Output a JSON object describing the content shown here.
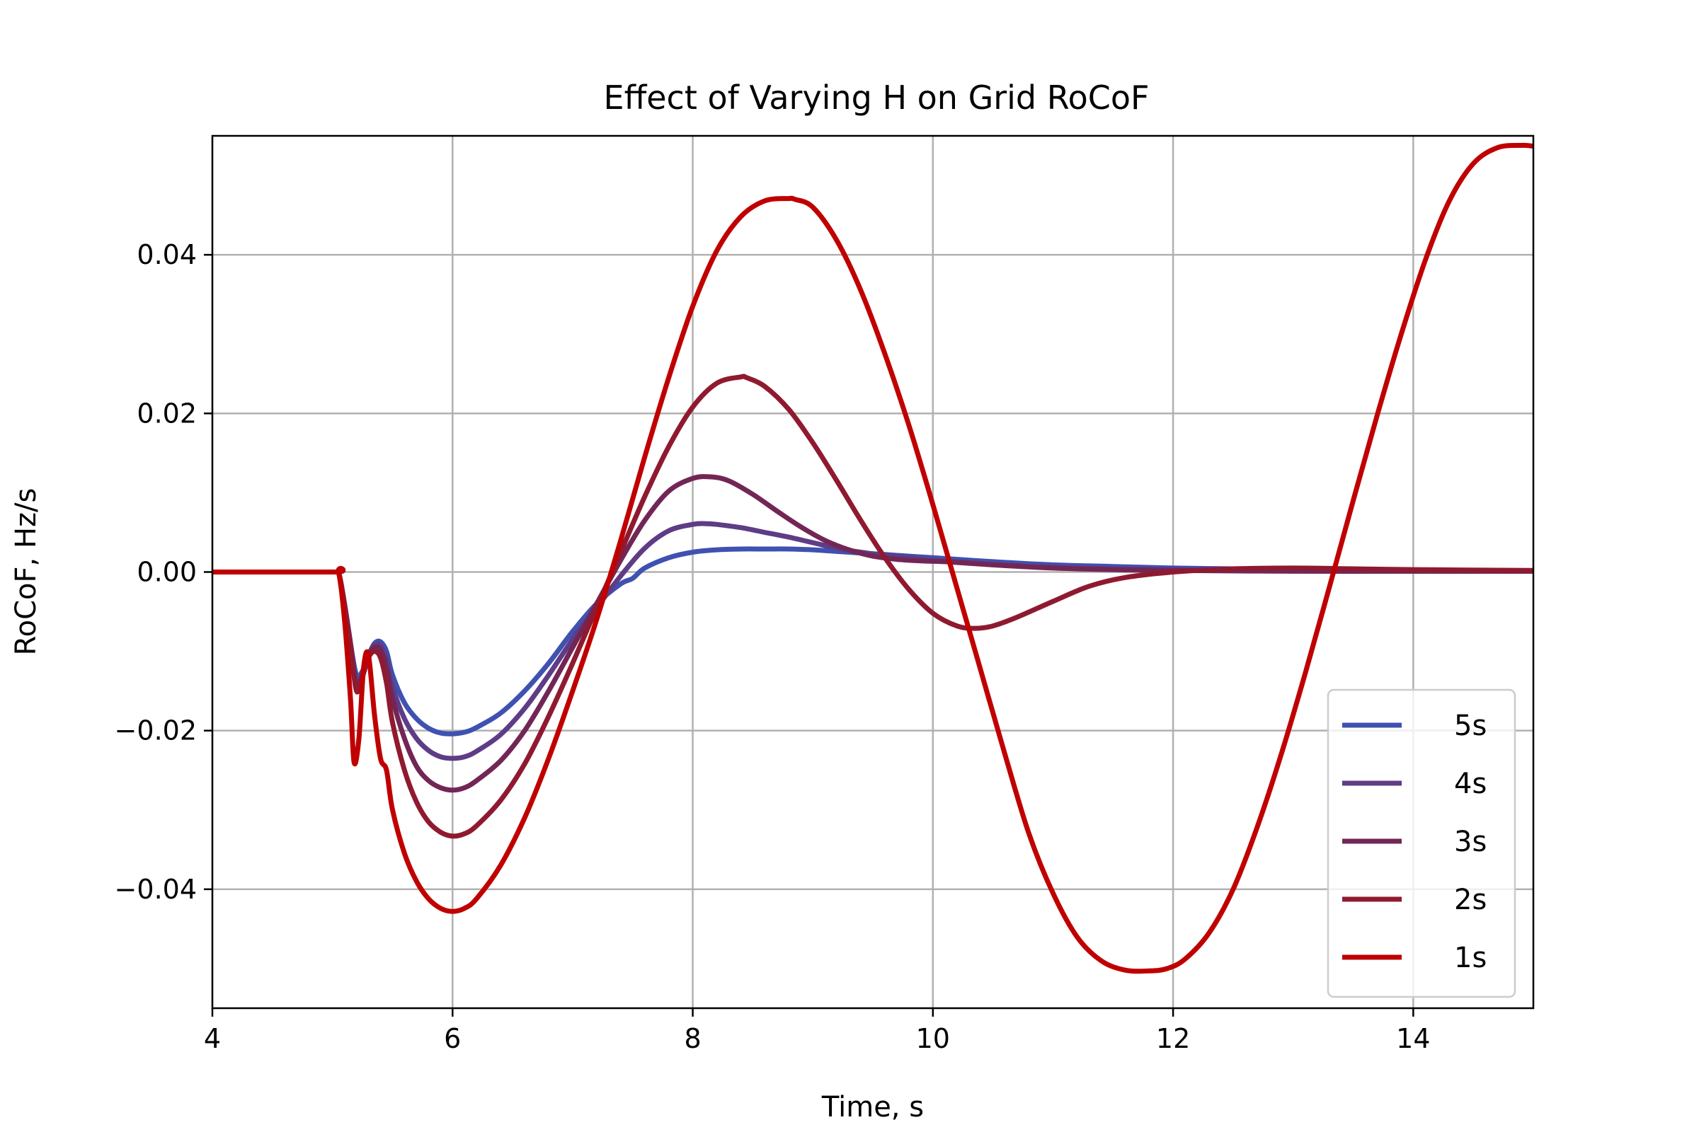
{
  "chart_data": {
    "type": "line",
    "title": "Effect of Varying H on Grid RoCoF",
    "xlabel": "Time, s",
    "ylabel": "RoCoF, Hz/s",
    "xlim": [
      4,
      15
    ],
    "ylim": [
      -0.055,
      0.055
    ],
    "xticks": [
      4,
      6,
      8,
      10,
      12,
      14
    ],
    "xtick_labels": [
      "4",
      "6",
      "8",
      "10",
      "12",
      "14"
    ],
    "yticks": [
      -0.04,
      -0.02,
      0.0,
      0.02,
      0.04
    ],
    "ytick_labels": [
      "−0.04",
      "−0.02",
      "0.00",
      "0.02",
      "0.04"
    ],
    "grid": true,
    "legend_position": "lower-right",
    "series": [
      {
        "name": "5s",
        "color": "#3f51b1",
        "x": [
          4.0,
          5.0,
          5.05,
          5.1,
          5.15,
          5.2,
          5.25,
          5.3,
          5.35,
          5.4,
          5.45,
          5.5,
          5.6,
          5.7,
          5.8,
          5.9,
          6.0,
          6.1,
          6.2,
          6.4,
          6.6,
          6.8,
          7.0,
          7.2,
          7.4,
          7.5,
          7.6,
          7.8,
          8.0,
          8.2,
          8.4,
          8.6,
          8.8,
          9.0,
          9.2,
          9.4,
          9.6,
          9.8,
          10.0,
          10.5,
          11.0,
          11.5,
          12.0,
          12.5,
          13.0,
          14.0,
          15.0
        ],
        "y": [
          0.0,
          0.0,
          0.0,
          -0.004,
          -0.009,
          -0.013,
          -0.0125,
          -0.0105,
          -0.009,
          -0.0088,
          -0.01,
          -0.013,
          -0.0165,
          -0.0185,
          -0.0197,
          -0.0203,
          -0.0204,
          -0.0202,
          -0.0196,
          -0.0178,
          -0.015,
          -0.0115,
          -0.0075,
          -0.004,
          -0.0015,
          -0.0008,
          0.0005,
          0.0018,
          0.0025,
          0.0028,
          0.0029,
          0.0029,
          0.0029,
          0.0028,
          0.0026,
          0.0024,
          0.0022,
          0.002,
          0.0018,
          0.0013,
          0.0009,
          0.0007,
          0.0005,
          0.0004,
          0.0003,
          0.0002,
          0.0001
        ]
      },
      {
        "name": "4s",
        "color": "#5e3c86",
        "x": [
          4.0,
          5.0,
          5.05,
          5.1,
          5.15,
          5.2,
          5.25,
          5.3,
          5.35,
          5.4,
          5.45,
          5.5,
          5.6,
          5.7,
          5.8,
          5.9,
          6.0,
          6.1,
          6.2,
          6.4,
          6.6,
          6.8,
          7.0,
          7.2,
          7.4,
          7.6,
          7.8,
          8.0,
          8.1,
          8.2,
          8.4,
          8.6,
          8.8,
          9.0,
          9.2,
          9.4,
          9.6,
          9.8,
          10.0,
          10.5,
          11.0,
          11.5,
          12.0,
          13.0,
          14.0,
          15.0
        ],
        "y": [
          0.0,
          0.0,
          0.0,
          -0.004,
          -0.009,
          -0.014,
          -0.0128,
          -0.0105,
          -0.0092,
          -0.0093,
          -0.011,
          -0.0145,
          -0.0185,
          -0.021,
          -0.0225,
          -0.0233,
          -0.0235,
          -0.0233,
          -0.0226,
          -0.0205,
          -0.0172,
          -0.013,
          -0.0085,
          -0.0045,
          -0.0005,
          0.003,
          0.0052,
          0.006,
          0.0061,
          0.006,
          0.0056,
          0.005,
          0.0044,
          0.0037,
          0.003,
          0.0025,
          0.0021,
          0.0018,
          0.0015,
          0.001,
          0.0006,
          0.0004,
          0.0003,
          0.0002,
          0.0001,
          0.0001
        ]
      },
      {
        "name": "3s",
        "color": "#722656",
        "x": [
          4.0,
          5.0,
          5.05,
          5.1,
          5.15,
          5.2,
          5.25,
          5.3,
          5.35,
          5.4,
          5.45,
          5.5,
          5.6,
          5.7,
          5.8,
          5.9,
          6.0,
          6.1,
          6.2,
          6.4,
          6.6,
          6.8,
          7.0,
          7.2,
          7.4,
          7.6,
          7.8,
          8.0,
          8.15,
          8.3,
          8.5,
          8.7,
          8.9,
          9.1,
          9.3,
          9.5,
          9.7,
          9.9,
          10.1,
          10.5,
          11.0,
          11.5,
          12.0,
          13.0,
          14.0,
          15.0
        ],
        "y": [
          0.0,
          0.0,
          0.0,
          -0.004,
          -0.009,
          -0.0145,
          -0.013,
          -0.0106,
          -0.0095,
          -0.0098,
          -0.012,
          -0.016,
          -0.021,
          -0.0245,
          -0.0263,
          -0.0272,
          -0.0275,
          -0.0272,
          -0.0263,
          -0.0238,
          -0.02,
          -0.015,
          -0.0095,
          -0.004,
          0.0015,
          0.0065,
          0.0102,
          0.0118,
          0.012,
          0.0115,
          0.0098,
          0.0077,
          0.0057,
          0.004,
          0.0028,
          0.002,
          0.0016,
          0.0014,
          0.0013,
          0.0009,
          0.0005,
          0.0003,
          0.0002,
          0.0001,
          0.0001,
          0.0001
        ]
      },
      {
        "name": "2s",
        "color": "#8f1a30",
        "x": [
          4.0,
          5.0,
          5.05,
          5.1,
          5.15,
          5.2,
          5.25,
          5.3,
          5.35,
          5.4,
          5.45,
          5.5,
          5.6,
          5.7,
          5.8,
          5.9,
          6.0,
          6.1,
          6.2,
          6.4,
          6.6,
          6.8,
          7.0,
          7.2,
          7.4,
          7.6,
          7.8,
          8.0,
          8.2,
          8.4,
          8.45,
          8.6,
          8.8,
          9.0,
          9.2,
          9.4,
          9.6,
          9.8,
          10.0,
          10.2,
          10.35,
          10.5,
          10.7,
          11.0,
          11.3,
          11.6,
          12.0,
          12.5,
          13.0,
          13.5,
          14.0,
          15.0
        ],
        "y": [
          0.0,
          0.0,
          0.0,
          -0.0045,
          -0.0095,
          -0.015,
          -0.0132,
          -0.0108,
          -0.01,
          -0.0108,
          -0.014,
          -0.019,
          -0.025,
          -0.029,
          -0.0315,
          -0.0328,
          -0.0333,
          -0.033,
          -0.032,
          -0.0288,
          -0.0242,
          -0.0182,
          -0.0115,
          -0.0045,
          0.0025,
          0.0095,
          0.0158,
          0.0208,
          0.0238,
          0.0246,
          0.0245,
          0.0234,
          0.0205,
          0.0163,
          0.0115,
          0.0065,
          0.0018,
          -0.0022,
          -0.0052,
          -0.0068,
          -0.0071,
          -0.0068,
          -0.0057,
          -0.0037,
          -0.0018,
          -0.0007,
          0.0,
          0.0004,
          0.0005,
          0.0004,
          0.0003,
          0.0002
        ]
      },
      {
        "name": "1s",
        "color": "#c00000",
        "x": [
          4.0,
          5.0,
          5.05,
          5.1,
          5.15,
          5.18,
          5.22,
          5.26,
          5.3,
          5.35,
          5.4,
          5.45,
          5.5,
          5.6,
          5.7,
          5.8,
          5.9,
          6.0,
          6.1,
          6.2,
          6.4,
          6.6,
          6.8,
          7.0,
          7.2,
          7.4,
          7.6,
          7.8,
          8.0,
          8.2,
          8.4,
          8.6,
          8.8,
          8.85,
          9.0,
          9.2,
          9.4,
          9.6,
          9.8,
          10.0,
          10.2,
          10.4,
          10.6,
          10.8,
          11.0,
          11.2,
          11.4,
          11.6,
          11.8,
          11.95,
          12.1,
          12.3,
          12.5,
          12.7,
          12.9,
          13.1,
          13.3,
          13.5,
          13.7,
          13.9,
          14.1,
          14.3,
          14.5,
          14.7,
          14.9,
          15.0
        ],
        "y": [
          0.0,
          0.0,
          0.0,
          -0.006,
          -0.016,
          -0.024,
          -0.021,
          -0.012,
          -0.0105,
          -0.018,
          -0.0235,
          -0.025,
          -0.03,
          -0.0355,
          -0.039,
          -0.0412,
          -0.0424,
          -0.0428,
          -0.0424,
          -0.0412,
          -0.037,
          -0.031,
          -0.0235,
          -0.015,
          -0.006,
          0.004,
          0.0145,
          0.0245,
          0.0335,
          0.0405,
          0.0448,
          0.0468,
          0.0471,
          0.047,
          0.046,
          0.0418,
          0.0355,
          0.0275,
          0.0185,
          0.0085,
          -0.002,
          -0.0125,
          -0.023,
          -0.033,
          -0.0405,
          -0.046,
          -0.049,
          -0.0502,
          -0.0503,
          -0.05,
          -0.0488,
          -0.0455,
          -0.04,
          -0.0322,
          -0.023,
          -0.0128,
          -0.002,
          0.009,
          0.0198,
          0.03,
          0.0393,
          0.0468,
          0.0515,
          0.0535,
          0.0538,
          0.0537
        ]
      }
    ]
  }
}
